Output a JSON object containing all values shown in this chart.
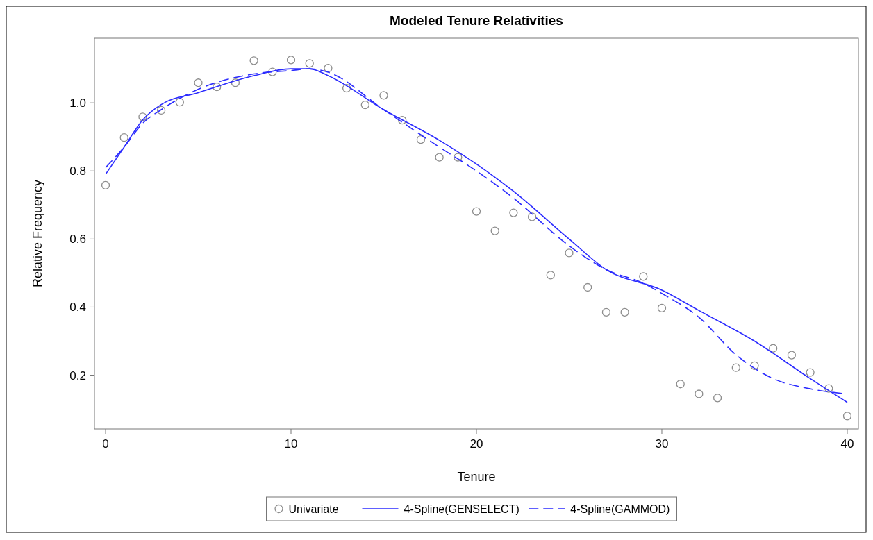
{
  "chart_data": {
    "type": "line",
    "title": "Modeled Tenure Relativities",
    "xlabel": "Tenure",
    "ylabel": "Relative Frequency",
    "xlim": [
      -0.6,
      40.6
    ],
    "ylim": [
      0.042,
      1.19
    ],
    "xticks": [
      0,
      10,
      20,
      30,
      40
    ],
    "yticks": [
      0.2,
      0.4,
      0.6,
      0.8,
      {
        "value": 1,
        "label": "1.0"
      }
    ],
    "grid": false,
    "legend": "bottom",
    "series": [
      {
        "name": "Univariate",
        "type": "scatter",
        "marker": "circle",
        "color": "#8c8c8c",
        "x": [
          0,
          1,
          2,
          3,
          4,
          5,
          6,
          7,
          8,
          9,
          10,
          11,
          12,
          13,
          14,
          15,
          16,
          17,
          18,
          19,
          20,
          21,
          22,
          23,
          24,
          25,
          26,
          27,
          28,
          29,
          30,
          31,
          32,
          33,
          34,
          35,
          36,
          37,
          38,
          39,
          40
        ],
        "values": [
          0.758,
          0.898,
          0.959,
          0.978,
          1.002,
          1.059,
          1.047,
          1.059,
          1.124,
          1.091,
          1.126,
          1.116,
          1.102,
          1.043,
          0.994,
          1.022,
          0.949,
          0.892,
          0.84,
          0.84,
          0.681,
          0.624,
          0.677,
          0.665,
          0.494,
          0.559,
          0.458,
          0.385,
          0.385,
          0.49,
          0.397,
          0.174,
          0.145,
          0.133,
          0.222,
          0.228,
          0.279,
          0.259,
          0.208,
          0.161,
          0.08
        ]
      },
      {
        "name": "4-Spline(GENSELECT)",
        "line_style": "solid",
        "color": "#2b2bff",
        "x": [
          0,
          1,
          2,
          3,
          5,
          8,
          10,
          11,
          12,
          15,
          18,
          20,
          22,
          25,
          27,
          30,
          32,
          35,
          38,
          40
        ],
        "values": [
          0.79,
          0.87,
          0.95,
          0.995,
          1.03,
          1.08,
          1.1,
          1.1,
          1.08,
          0.98,
          0.89,
          0.82,
          0.74,
          0.6,
          0.51,
          0.45,
          0.39,
          0.3,
          0.19,
          0.12
        ]
      },
      {
        "name": "4-Spline(GAMMOD)",
        "line_style": "dashed",
        "color": "#2b2bff",
        "x": [
          0,
          1,
          2,
          3,
          5,
          8,
          10,
          11,
          12,
          15,
          18,
          20,
          22,
          25,
          27,
          29,
          30,
          32,
          34,
          36,
          38,
          40
        ],
        "values": [
          0.81,
          0.87,
          0.94,
          0.98,
          1.04,
          1.085,
          1.095,
          1.1,
          1.09,
          0.98,
          0.87,
          0.8,
          0.72,
          0.58,
          0.51,
          0.47,
          0.44,
          0.37,
          0.26,
          0.19,
          0.16,
          0.145
        ]
      }
    ]
  }
}
